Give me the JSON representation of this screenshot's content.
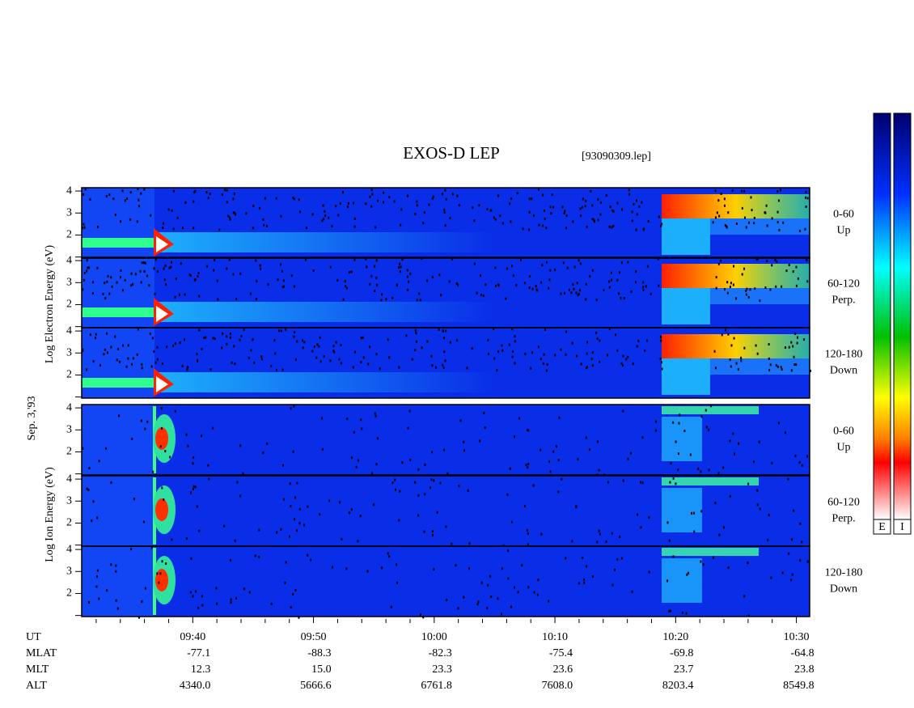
{
  "chart_data": {
    "type": "spectrogram",
    "title": "EXOS-D LEP",
    "subtitle": "[93090309.lep]",
    "date_label": "Sep. 3,'93",
    "electron_label": "Log Electron Energy (eV)",
    "ion_label": "Log Ion Energy (eV)",
    "ylim": [
      0.95,
      4.15
    ],
    "yticks": [
      2,
      3,
      4
    ],
    "minor_yticks": [
      1
    ],
    "panels": [
      {
        "species": "electron",
        "angle": "0-60",
        "direction": "Up"
      },
      {
        "species": "electron",
        "angle": "60-120",
        "direction": "Perp."
      },
      {
        "species": "electron",
        "angle": "120-180",
        "direction": "Down"
      },
      {
        "species": "ion",
        "angle": "0-60",
        "direction": "Up"
      },
      {
        "species": "ion",
        "angle": "60-120",
        "direction": "Perp."
      },
      {
        "species": "ion",
        "angle": "120-180",
        "direction": "Down"
      }
    ],
    "x_label": "UT",
    "xlim": [
      570.8,
      631.1
    ],
    "xticks": [
      {
        "value": 580,
        "label": "09:40"
      },
      {
        "value": 590,
        "label": "09:50"
      },
      {
        "value": 600,
        "label": "10:00"
      },
      {
        "value": 610,
        "label": "10:10"
      },
      {
        "value": 620,
        "label": "10:20"
      },
      {
        "value": 630,
        "label": "10:30"
      }
    ],
    "minor_xticks": [
      572,
      574,
      576,
      578,
      582,
      584,
      586,
      588,
      592,
      594,
      596,
      598,
      602,
      604,
      606,
      608,
      612,
      614,
      616,
      618,
      622,
      624,
      626,
      628
    ],
    "ephemeris": [
      {
        "name": "MLAT",
        "values": [
          -77.1,
          -88.3,
          -82.3,
          -75.4,
          -69.8,
          -64.8
        ]
      },
      {
        "name": "MLT",
        "values": [
          12.3,
          15,
          23.3,
          23.6,
          23.7,
          23.8
        ],
        "value_labels": [
          "12.3",
          "15.0",
          "23.3",
          "23.6",
          "23.7",
          "23.8"
        ]
      },
      {
        "name": "ALT",
        "values": [
          4340,
          5666.6,
          6761.8,
          7608,
          8203.4,
          8549.8
        ],
        "value_labels": [
          "4340.0",
          "5666.6",
          "6761.8",
          "7608.0",
          "8203.4",
          "8549.8"
        ]
      }
    ],
    "colorbar_labels": [
      "E",
      "I"
    ]
  }
}
